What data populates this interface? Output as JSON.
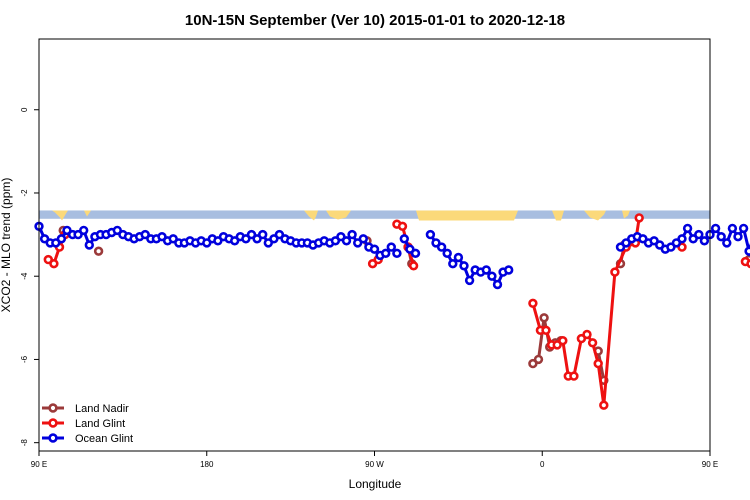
{
  "chart_data": {
    "type": "line",
    "title": "10N-15N September (Ver 10)   2015-01-01 to 2020-12-18",
    "xlabel": "Longitude",
    "ylabel": "XCO2 - MLO trend (ppm)",
    "xlim": [
      90,
      450
    ],
    "ylim": [
      -8.2,
      1.7
    ],
    "x_ticks": [
      {
        "value": 90,
        "label": "90 E"
      },
      {
        "value": 180,
        "label": "180"
      },
      {
        "value": 270,
        "label": "90 W"
      },
      {
        "value": 360,
        "label": "0"
      },
      {
        "value": 450,
        "label": "90 E"
      },
      {
        "value": 540,
        "label": "180"
      }
    ],
    "y_ticks": [
      {
        "value": 0,
        "label": "0"
      },
      {
        "value": -2,
        "label": "-2"
      },
      {
        "value": -4,
        "label": "-4"
      },
      {
        "value": -6,
        "label": "-6"
      },
      {
        "value": -8,
        "label": "-8"
      }
    ],
    "legend_position": "bottom-left",
    "land_band": {
      "y_top": -2.42,
      "y_bottom": -2.62,
      "ocean_color": "#a8bee0",
      "land_color": "#fbd97a"
    },
    "series": [
      {
        "name": "Land Nadir",
        "color": "#9b3a3a",
        "segments": [
          [
            [
              100,
              -3.2
            ],
            [
              103,
              -2.9
            ]
          ],
          [
            [
              122,
              -3.4
            ]
          ],
          [
            [
              266,
              -3.15
            ]
          ],
          [
            [
              288,
              -3.3
            ],
            [
              290,
              -3.7
            ]
          ],
          [
            [
              355,
              -6.1
            ],
            [
              358,
              -6.0
            ],
            [
              361,
              -5.0
            ],
            [
              364,
              -5.7
            ],
            [
              367,
              -5.6
            ],
            [
              370,
              -5.55
            ]
          ],
          [
            [
              390,
              -5.8
            ],
            [
              393,
              -6.5
            ]
          ],
          [
            [
              402,
              -3.7
            ],
            [
              404,
              -3.25
            ]
          ],
          [
            [
              471,
              -3.6
            ],
            [
              474,
              -3.2
            ],
            [
              476,
              -2.9
            ]
          ],
          [
            [
              489,
              -3.4
            ]
          ]
        ]
      },
      {
        "name": "Land Glint",
        "color": "#ee1111",
        "segments": [
          [
            [
              95,
              -3.6
            ],
            [
              98,
              -3.7
            ],
            [
              101,
              -3.3
            ],
            [
              104,
              -3.0
            ]
          ],
          [
            [
              269,
              -3.7
            ],
            [
              272,
              -3.6
            ]
          ],
          [
            [
              282,
              -2.75
            ],
            [
              285,
              -2.8
            ],
            [
              288,
              -3.3
            ],
            [
              291,
              -3.75
            ]
          ],
          [
            [
              355,
              -4.65
            ],
            [
              359,
              -5.3
            ],
            [
              362,
              -5.3
            ],
            [
              365,
              -5.65
            ],
            [
              368,
              -5.65
            ],
            [
              371,
              -5.55
            ],
            [
              374,
              -6.4
            ],
            [
              377,
              -6.4
            ],
            [
              381,
              -5.5
            ],
            [
              384,
              -5.4
            ],
            [
              387,
              -5.6
            ],
            [
              390,
              -6.1
            ],
            [
              393,
              -7.1
            ],
            [
              399,
              -3.9
            ],
            [
              405,
              -3.3
            ],
            [
              410,
              -3.2
            ],
            [
              412,
              -2.6
            ]
          ],
          [
            [
              435,
              -3.3
            ]
          ],
          [
            [
              469,
              -3.65
            ],
            [
              472,
              -3.7
            ],
            [
              475,
              -3.3
            ]
          ]
        ]
      },
      {
        "name": "Ocean Glint",
        "color": "#0000dd",
        "segments": [
          [
            [
              90,
              -2.8
            ],
            [
              93,
              -3.1
            ],
            [
              96,
              -3.2
            ],
            [
              99,
              -3.2
            ],
            [
              102,
              -3.1
            ],
            [
              105,
              -2.9
            ],
            [
              108,
              -3.0
            ],
            [
              111,
              -3.0
            ],
            [
              114,
              -2.9
            ],
            [
              117,
              -3.25
            ],
            [
              120,
              -3.05
            ],
            [
              123,
              -3.0
            ],
            [
              126,
              -3.0
            ],
            [
              129,
              -2.95
            ],
            [
              132,
              -2.9
            ],
            [
              135,
              -3.0
            ],
            [
              138,
              -3.05
            ],
            [
              141,
              -3.1
            ],
            [
              144,
              -3.05
            ],
            [
              147,
              -3.0
            ],
            [
              150,
              -3.1
            ],
            [
              153,
              -3.1
            ],
            [
              156,
              -3.05
            ],
            [
              159,
              -3.15
            ],
            [
              162,
              -3.1
            ],
            [
              165,
              -3.2
            ],
            [
              168,
              -3.2
            ],
            [
              171,
              -3.15
            ],
            [
              174,
              -3.2
            ],
            [
              177,
              -3.15
            ],
            [
              180,
              -3.2
            ],
            [
              183,
              -3.1
            ],
            [
              186,
              -3.15
            ],
            [
              189,
              -3.05
            ],
            [
              192,
              -3.1
            ],
            [
              195,
              -3.15
            ],
            [
              198,
              -3.05
            ],
            [
              201,
              -3.1
            ],
            [
              204,
              -3.0
            ],
            [
              207,
              -3.1
            ],
            [
              210,
              -3.0
            ],
            [
              213,
              -3.2
            ],
            [
              216,
              -3.1
            ],
            [
              219,
              -3.0
            ],
            [
              222,
              -3.1
            ],
            [
              225,
              -3.15
            ],
            [
              228,
              -3.2
            ],
            [
              231,
              -3.2
            ],
            [
              234,
              -3.2
            ],
            [
              237,
              -3.25
            ],
            [
              240,
              -3.2
            ],
            [
              243,
              -3.15
            ],
            [
              246,
              -3.2
            ],
            [
              249,
              -3.15
            ],
            [
              252,
              -3.05
            ],
            [
              255,
              -3.15
            ],
            [
              258,
              -3.0
            ],
            [
              261,
              -3.2
            ],
            [
              264,
              -3.1
            ],
            [
              267,
              -3.3
            ],
            [
              270,
              -3.35
            ],
            [
              273,
              -3.5
            ],
            [
              276,
              -3.45
            ],
            [
              279,
              -3.3
            ],
            [
              282,
              -3.45
            ]
          ],
          [
            [
              286,
              -3.1
            ],
            [
              289,
              -3.35
            ],
            [
              292,
              -3.45
            ]
          ],
          [
            [
              300,
              -3.0
            ],
            [
              303,
              -3.2
            ],
            [
              306,
              -3.3
            ],
            [
              309,
              -3.45
            ],
            [
              312,
              -3.7
            ],
            [
              315,
              -3.55
            ],
            [
              318,
              -3.75
            ],
            [
              321,
              -4.1
            ],
            [
              324,
              -3.85
            ],
            [
              327,
              -3.9
            ],
            [
              330,
              -3.85
            ],
            [
              333,
              -4.0
            ],
            [
              336,
              -4.2
            ],
            [
              339,
              -3.9
            ],
            [
              342,
              -3.85
            ]
          ],
          [
            [
              402,
              -3.3
            ],
            [
              405,
              -3.2
            ],
            [
              408,
              -3.1
            ],
            [
              411,
              -3.05
            ],
            [
              414,
              -3.1
            ],
            [
              417,
              -3.2
            ],
            [
              420,
              -3.15
            ],
            [
              423,
              -3.25
            ],
            [
              426,
              -3.35
            ],
            [
              429,
              -3.3
            ],
            [
              432,
              -3.2
            ],
            [
              435,
              -3.1
            ],
            [
              438,
              -2.85
            ],
            [
              441,
              -3.1
            ],
            [
              444,
              -3.0
            ],
            [
              447,
              -3.15
            ],
            [
              450,
              -3.0
            ],
            [
              453,
              -2.85
            ],
            [
              456,
              -3.05
            ],
            [
              459,
              -3.2
            ],
            [
              462,
              -2.85
            ],
            [
              465,
              -3.05
            ],
            [
              468,
              -2.85
            ],
            [
              471,
              -3.4
            ],
            [
              474,
              -2.95
            ],
            [
              477,
              -3.0
            ],
            [
              480,
              -2.85
            ],
            [
              483,
              -2.9
            ],
            [
              486,
              -3.05
            ],
            [
              489,
              -3.1
            ],
            [
              492,
              -3.1
            ],
            [
              495,
              -3.05
            ]
          ]
        ]
      }
    ]
  }
}
